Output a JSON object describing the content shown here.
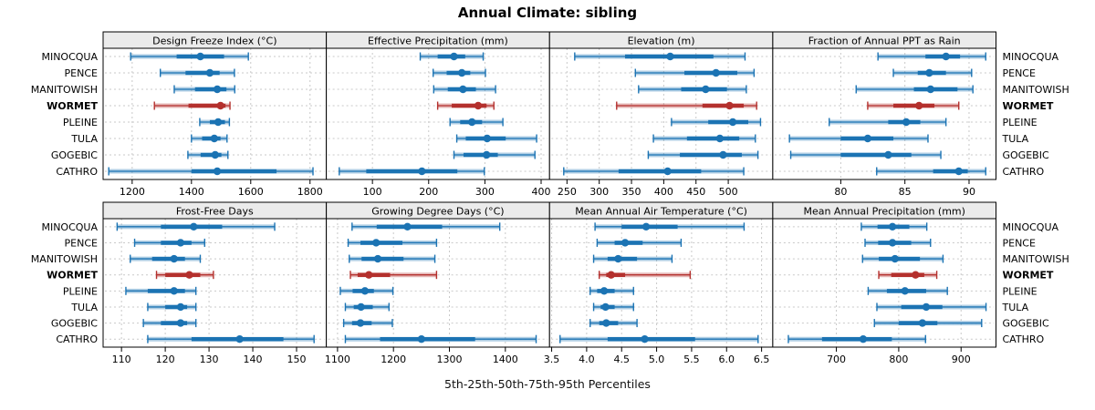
{
  "title": "Annual Climate: sibling",
  "xlabel": "5th-25th-50th-75th-95th Percentiles",
  "sites": [
    "MINOCQUA",
    "PENCE",
    "MANITOWISH",
    "WORMET",
    "PLEINE",
    "TULA",
    "GOGEBIC",
    "CATHRO"
  ],
  "highlight_site": "WORMET",
  "percentile_labels": [
    "5th",
    "25th",
    "50th",
    "75th",
    "95th"
  ],
  "colors": {
    "series_blue": "#1b73b3",
    "highlight_red": "#b4302d",
    "strip_bg": "#ebebeb",
    "grid": "#c9c9c9",
    "border": "#000000",
    "panel_bg": "#ffffff",
    "text": "#000000"
  },
  "chart_data": [
    {
      "type": "dot-interval",
      "title": "Design Freeze Index (°C)",
      "xlim": [
        1102,
        1855
      ],
      "ticks": [
        1200,
        1400,
        1600,
        1800
      ],
      "tick_labels": [
        "1200",
        "1400",
        "1600",
        "1800"
      ],
      "rows": [
        [
          1195,
          1350,
          1430,
          1510,
          1592
        ],
        [
          1295,
          1380,
          1462,
          1495,
          1545
        ],
        [
          1342,
          1412,
          1487,
          1518,
          1546
        ],
        [
          1275,
          1390,
          1498,
          1515,
          1530
        ],
        [
          1428,
          1462,
          1490,
          1513,
          1528
        ],
        [
          1400,
          1436,
          1477,
          1498,
          1520
        ],
        [
          1388,
          1431,
          1480,
          1501,
          1523
        ],
        [
          1121,
          1400,
          1487,
          1687,
          1810
        ]
      ]
    },
    {
      "type": "dot-interval",
      "title": "Effective Precipitation (mm)",
      "xlim": [
        18,
        415
      ],
      "ticks": [
        100,
        200,
        300,
        400
      ],
      "tick_labels": [
        "100",
        "200",
        "300",
        "400"
      ],
      "rows": [
        [
          185,
          216,
          245,
          265,
          297
        ],
        [
          208,
          232,
          259,
          274,
          301
        ],
        [
          209,
          234,
          261,
          284,
          319
        ],
        [
          216,
          241,
          288,
          303,
          316
        ],
        [
          238,
          256,
          277,
          295,
          332
        ],
        [
          250,
          266,
          304,
          337,
          392
        ],
        [
          245,
          262,
          303,
          323,
          389
        ],
        [
          41,
          89,
          188,
          251,
          299
        ]
      ]
    },
    {
      "type": "dot-interval",
      "title": "Elevation (m)",
      "xlim": [
        223,
        569
      ],
      "ticks": [
        250,
        300,
        350,
        400,
        450,
        500
      ],
      "tick_labels": [
        "250",
        "300",
        "350",
        "400",
        "450",
        "500"
      ],
      "rows": [
        [
          262,
          340,
          410,
          477,
          526
        ],
        [
          356,
          432,
          481,
          514,
          540
        ],
        [
          361,
          427,
          465,
          498,
          528
        ],
        [
          327,
          460,
          502,
          524,
          544
        ],
        [
          412,
          469,
          507,
          531,
          550
        ],
        [
          384,
          436,
          487,
          517,
          542
        ],
        [
          376,
          425,
          492,
          521,
          546
        ],
        [
          245,
          330,
          406,
          458,
          524
        ]
      ]
    },
    {
      "type": "dot-interval",
      "title": "Fraction of Annual PPT as Rain",
      "xlim": [
        74.7,
        92.1
      ],
      "ticks": [
        80,
        85,
        90
      ],
      "tick_labels": [
        "80",
        "85",
        "90"
      ],
      "rows": [
        [
          82.9,
          86.6,
          88.2,
          89.3,
          91.3
        ],
        [
          84.1,
          86.0,
          86.9,
          88.2,
          90.2
        ],
        [
          81.2,
          85.7,
          87.0,
          89.1,
          90.3
        ],
        [
          82.1,
          84.1,
          86.1,
          87.3,
          89.2
        ],
        [
          79.1,
          83.7,
          85.1,
          86.2,
          88.2
        ],
        [
          76.0,
          80.0,
          82.1,
          84.1,
          86.8
        ],
        [
          76.1,
          80.0,
          83.7,
          85.5,
          87.8
        ],
        [
          82.8,
          87.2,
          89.2,
          89.9,
          91.3
        ]
      ]
    },
    {
      "type": "dot-interval",
      "title": "Frost-Free Days",
      "xlim": [
        105.8,
        156.8
      ],
      "ticks": [
        110,
        120,
        130,
        140,
        150
      ],
      "tick_labels": [
        "110",
        "120",
        "130",
        "140",
        "150"
      ],
      "rows": [
        [
          109,
          119,
          126.5,
          133,
          145
        ],
        [
          113,
          119,
          123.5,
          126,
          129
        ],
        [
          112,
          117,
          122,
          124.5,
          128
        ],
        [
          118,
          120,
          125.5,
          128,
          131
        ],
        [
          111,
          116,
          122,
          124.5,
          127
        ],
        [
          116,
          120,
          123.5,
          125,
          127
        ],
        [
          115,
          119,
          123.5,
          125,
          127
        ],
        [
          116,
          126,
          137,
          147,
          154
        ]
      ]
    },
    {
      "type": "dot-interval",
      "title": "Growing Degree Days (°C)",
      "xlim": [
        1080,
        1479
      ],
      "ticks": [
        1100,
        1200,
        1300,
        1400
      ],
      "tick_labels": [
        "1100",
        "1200",
        "1300",
        "1400"
      ],
      "rows": [
        [
          1126,
          1170,
          1225,
          1287,
          1390
        ],
        [
          1119,
          1141,
          1169,
          1216,
          1277
        ],
        [
          1121,
          1143,
          1172,
          1218,
          1274
        ],
        [
          1123,
          1136,
          1156,
          1194,
          1277
        ],
        [
          1105,
          1127,
          1149,
          1165,
          1199
        ],
        [
          1114,
          1129,
          1142,
          1163,
          1192
        ],
        [
          1111,
          1126,
          1141,
          1161,
          1198
        ],
        [
          1114,
          1176,
          1250,
          1346,
          1455
        ]
      ]
    },
    {
      "type": "dot-interval",
      "title": "Mean Annual Air Temperature (°C)",
      "xlim": [
        3.47,
        6.66
      ],
      "ticks": [
        3.5,
        4.0,
        4.5,
        5.0,
        5.5,
        6.0,
        6.5
      ],
      "tick_labels": [
        "3.5",
        "4.0",
        "4.5",
        "5.0",
        "5.5",
        "6.0",
        "6.5"
      ],
      "rows": [
        [
          4.12,
          4.5,
          4.85,
          5.3,
          6.25
        ],
        [
          4.15,
          4.4,
          4.55,
          4.8,
          5.35
        ],
        [
          4.1,
          4.3,
          4.45,
          4.72,
          5.22
        ],
        [
          4.18,
          4.28,
          4.35,
          4.55,
          5.48
        ],
        [
          4.05,
          4.15,
          4.25,
          4.4,
          4.67
        ],
        [
          4.1,
          4.2,
          4.27,
          4.4,
          4.67
        ],
        [
          4.05,
          4.18,
          4.28,
          4.45,
          4.72
        ],
        [
          3.62,
          4.3,
          4.83,
          5.55,
          6.45
        ]
      ]
    },
    {
      "type": "dot-interval",
      "title": "Mean Annual Precipitation (mm)",
      "xlim": [
        598,
        956
      ],
      "ticks": [
        700,
        800,
        900
      ],
      "tick_labels": [
        "700",
        "800",
        "900"
      ],
      "rows": [
        [
          740,
          766,
          790,
          817,
          845
        ],
        [
          746,
          767,
          790,
          820,
          851
        ],
        [
          742,
          768,
          794,
          834,
          871
        ],
        [
          768,
          788,
          827,
          841,
          861
        ],
        [
          751,
          781,
          810,
          844,
          878
        ],
        [
          765,
          804,
          844,
          870,
          940
        ],
        [
          761,
          800,
          838,
          862,
          933
        ],
        [
          623,
          677,
          743,
          789,
          843
        ]
      ]
    }
  ]
}
